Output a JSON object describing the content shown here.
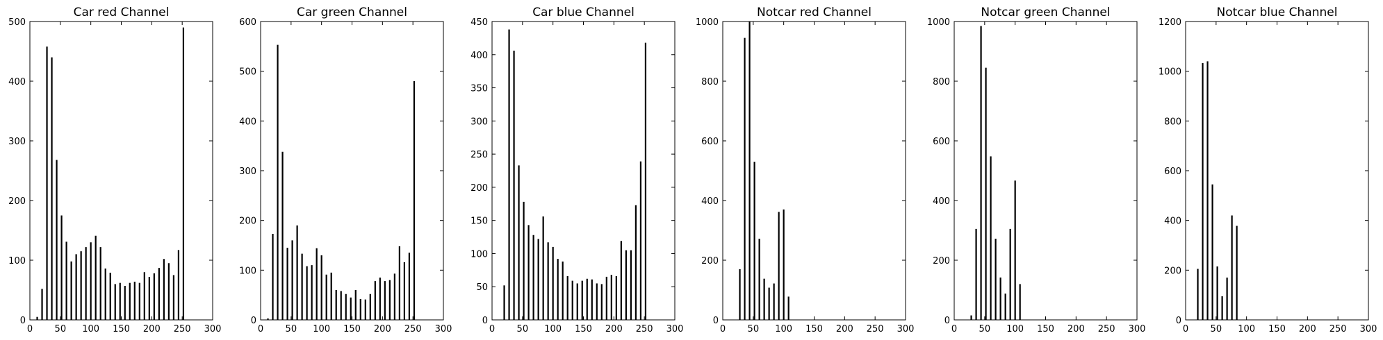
{
  "chart_data": [
    {
      "type": "bar",
      "title": "Car red Channel",
      "xlim": [
        0,
        300
      ],
      "ylim": [
        0,
        500
      ],
      "xticks": [
        0,
        50,
        100,
        150,
        200,
        250,
        300
      ],
      "yticks": [
        0,
        100,
        200,
        300,
        400,
        500
      ],
      "x": [
        12,
        20,
        28,
        36,
        44,
        52,
        60,
        68,
        76,
        84,
        92,
        100,
        108,
        116,
        124,
        132,
        140,
        148,
        156,
        164,
        172,
        180,
        188,
        196,
        204,
        212,
        220,
        228,
        236,
        244,
        252
      ],
      "values": [
        5,
        52,
        458,
        440,
        268,
        175,
        131,
        98,
        110,
        115,
        122,
        130,
        141,
        122,
        86,
        79,
        60,
        62,
        57,
        62,
        64,
        62,
        80,
        72,
        78,
        87,
        102,
        95,
        75,
        117,
        490
      ]
    },
    {
      "type": "bar",
      "title": "Car green Channel",
      "xlim": [
        0,
        300
      ],
      "ylim": [
        0,
        600
      ],
      "xticks": [
        0,
        50,
        100,
        150,
        200,
        250,
        300
      ],
      "yticks": [
        0,
        100,
        200,
        300,
        400,
        500,
        600
      ],
      "x": [
        12,
        20,
        28,
        36,
        44,
        52,
        60,
        68,
        76,
        84,
        92,
        100,
        108,
        116,
        124,
        132,
        140,
        148,
        156,
        164,
        172,
        180,
        188,
        196,
        204,
        212,
        220,
        228,
        236,
        244,
        252
      ],
      "values": [
        3,
        173,
        553,
        338,
        145,
        160,
        190,
        133,
        108,
        110,
        144,
        130,
        91,
        95,
        60,
        58,
        52,
        45,
        60,
        42,
        41,
        52,
        78,
        85,
        78,
        80,
        93,
        148,
        116,
        135,
        480
      ]
    },
    {
      "type": "bar",
      "title": "Car blue Channel",
      "xlim": [
        0,
        300
      ],
      "ylim": [
        0,
        450
      ],
      "xticks": [
        0,
        50,
        100,
        150,
        200,
        250,
        300
      ],
      "yticks": [
        0,
        50,
        100,
        150,
        200,
        250,
        300,
        350,
        400,
        450
      ],
      "x": [
        20,
        28,
        36,
        44,
        52,
        60,
        68,
        76,
        84,
        92,
        100,
        108,
        116,
        124,
        132,
        140,
        148,
        156,
        164,
        172,
        180,
        188,
        196,
        204,
        212,
        220,
        228,
        236,
        244,
        252
      ],
      "values": [
        52,
        438,
        406,
        233,
        178,
        143,
        128,
        122,
        156,
        117,
        110,
        92,
        88,
        66,
        59,
        55,
        59,
        62,
        61,
        55,
        54,
        65,
        68,
        66,
        119,
        105,
        105,
        173,
        239,
        418
      ]
    },
    {
      "type": "bar",
      "title": "Notcar red Channel",
      "xlim": [
        0,
        300
      ],
      "ylim": [
        0,
        1000
      ],
      "xticks": [
        0,
        50,
        100,
        150,
        200,
        250,
        300
      ],
      "yticks": [
        0,
        200,
        400,
        600,
        800,
        1000
      ],
      "x": [
        28,
        36,
        44,
        52,
        60,
        68,
        76,
        84,
        92,
        100,
        108
      ],
      "values": [
        170,
        945,
        1000,
        530,
        272,
        138,
        108,
        122,
        362,
        370,
        78
      ]
    },
    {
      "type": "bar",
      "title": "Notcar green Channel",
      "xlim": [
        0,
        300
      ],
      "ylim": [
        0,
        1000
      ],
      "xticks": [
        0,
        50,
        100,
        150,
        200,
        250,
        300
      ],
      "yticks": [
        0,
        200,
        400,
        600,
        800,
        1000
      ],
      "x": [
        28,
        36,
        44,
        52,
        60,
        68,
        76,
        84,
        92,
        100,
        108
      ],
      "values": [
        15,
        305,
        985,
        845,
        548,
        272,
        142,
        88,
        305,
        467,
        120
      ]
    },
    {
      "type": "bar",
      "title": "Notcar blue Channel",
      "xlim": [
        0,
        300
      ],
      "ylim": [
        0,
        1200
      ],
      "xticks": [
        0,
        50,
        100,
        150,
        200,
        250,
        300
      ],
      "yticks": [
        0,
        200,
        400,
        600,
        800,
        1000,
        1200
      ],
      "x": [
        20,
        28,
        36,
        44,
        52,
        60,
        68,
        76,
        84,
        92
      ],
      "values": [
        205,
        1033,
        1040,
        545,
        215,
        95,
        170,
        420,
        378,
        0
      ]
    }
  ]
}
